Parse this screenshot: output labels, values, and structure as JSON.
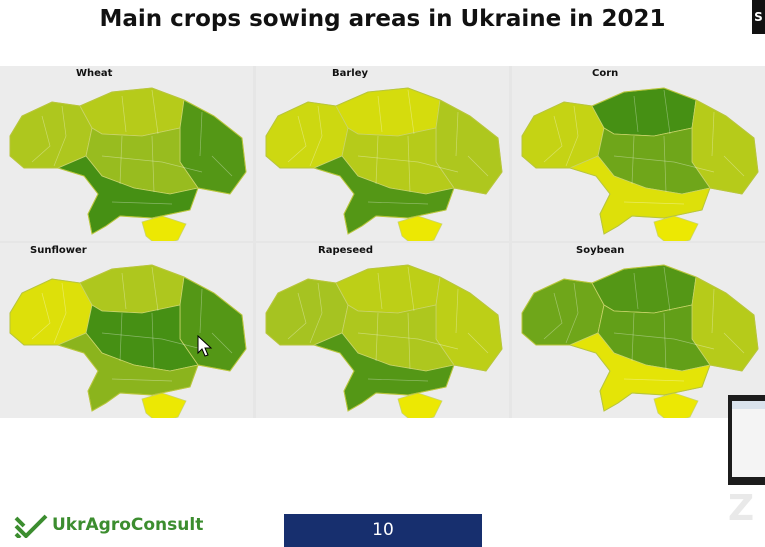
{
  "title": "Main crops sowing areas in Ukraine in 2021",
  "corner_letter": "S",
  "legend_scale": {
    "low_color": "#f4ec00",
    "mid_color": "#a6c321",
    "high_color": "#1d7a0f"
  },
  "maps": [
    {
      "label": "Wheat",
      "intensity": {
        "west": 0.45,
        "north": 0.4,
        "center": 0.55,
        "east": 0.8,
        "south": 0.85,
        "crimea": 0.05
      }
    },
    {
      "label": "Barley",
      "intensity": {
        "west": 0.25,
        "north": 0.2,
        "center": 0.4,
        "east": 0.45,
        "south": 0.8,
        "crimea": 0.05
      }
    },
    {
      "label": "Corn",
      "intensity": {
        "west": 0.3,
        "north": 0.85,
        "center": 0.7,
        "east": 0.4,
        "south": 0.15,
        "crimea": 0.05
      }
    },
    {
      "label": "Sunflower",
      "intensity": {
        "west": 0.15,
        "north": 0.45,
        "center": 0.85,
        "east": 0.8,
        "south": 0.6,
        "crimea": 0.05
      }
    },
    {
      "label": "Rapeseed",
      "intensity": {
        "west": 0.5,
        "north": 0.35,
        "center": 0.45,
        "east": 0.35,
        "south": 0.8,
        "crimea": 0.05
      }
    },
    {
      "label": "Soybean",
      "intensity": {
        "west": 0.7,
        "north": 0.8,
        "center": 0.75,
        "east": 0.4,
        "south": 0.1,
        "crimea": 0.05
      }
    }
  ],
  "logo": {
    "text": "UkrAgroConsult",
    "color": "#3c8d2f"
  },
  "page_number": "10",
  "page_box_color": "#172f6e"
}
